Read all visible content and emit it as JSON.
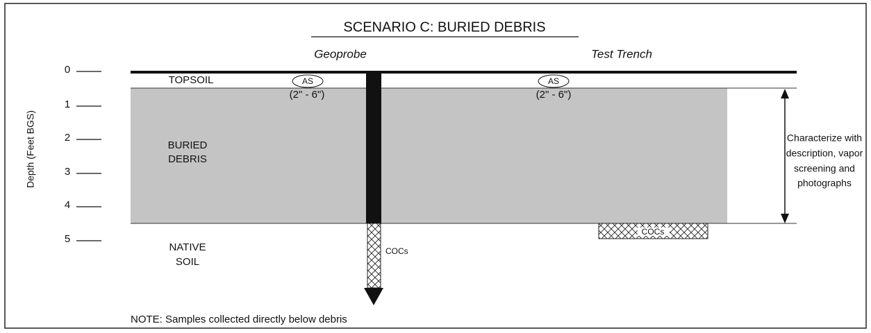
{
  "title": "SCENARIO C: BURIED DEBRIS",
  "columns": [
    "Geoprobe",
    "Test Trench"
  ],
  "axis": {
    "label": "Depth (Feet BGS)",
    "ticks": [
      "0",
      "1",
      "2",
      "3",
      "4",
      "5"
    ]
  },
  "layers": {
    "topsoil": [
      "TOPSOIL"
    ],
    "debris": [
      "BURIED",
      "DEBRIS"
    ],
    "native": [
      "NATIVE",
      "SOIL"
    ]
  },
  "samples": {
    "geoprobe": {
      "tag": "AS",
      "range": "(2\" - 6\")",
      "coc": "COCs"
    },
    "trench": {
      "tag": "AS",
      "range": "(2\" - 6\")",
      "coc": "COCs"
    }
  },
  "characterize": [
    "Characterize with",
    "description, vapor",
    "screening and",
    "photographs"
  ],
  "note": "NOTE: Samples collected directly below debris"
}
